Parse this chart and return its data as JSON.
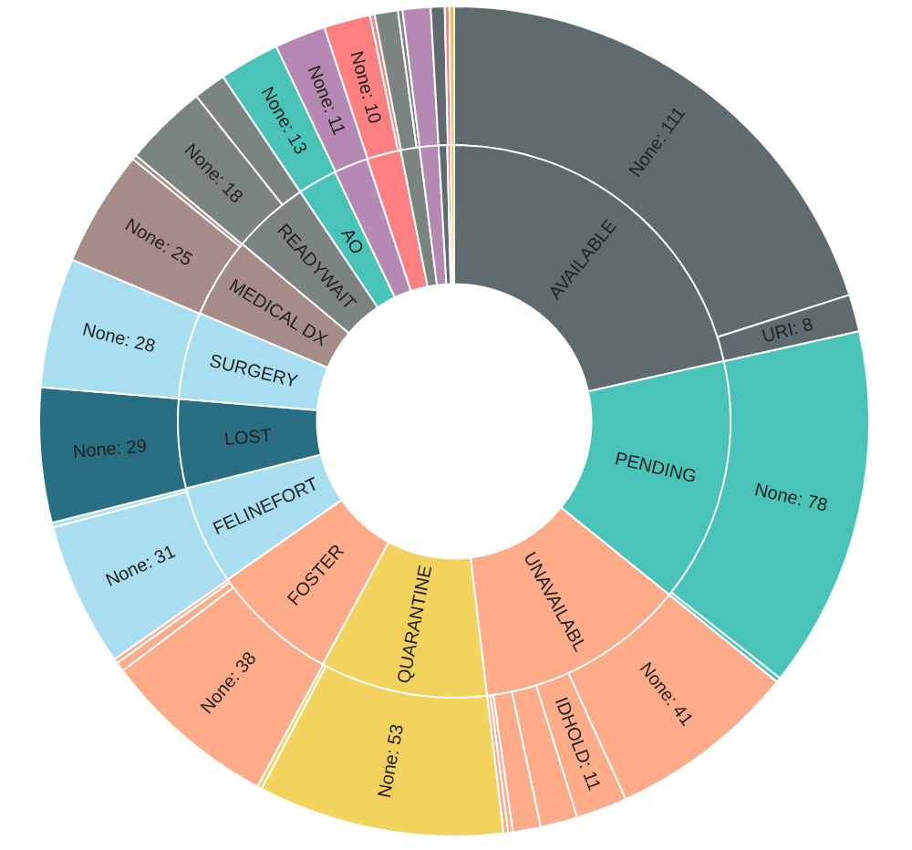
{
  "chart_data": [
    {
      "type": "donut",
      "categories": [
        "AVAILABLE",
        "PENDING",
        "UNAVAILABL",
        "QUARANTINE",
        "FOSTER",
        "FELINEFORT",
        "LOST",
        "SURGERY",
        "MEDICAL DX",
        "READYWAIT",
        "AO",
        null,
        null,
        null,
        null,
        null,
        null,
        null
      ],
      "values": [
        21.5,
        14.3,
        12.3,
        9.8,
        7.4,
        5.8,
        5.2,
        5.1,
        4.7,
        4.5,
        2.3,
        2.0,
        2.0,
        1.1,
        1.1,
        0.5,
        0.2,
        0.2
      ],
      "colors": [
        "#5f6b6d",
        "#4ac4b9",
        "#fdab89",
        "#f3d25e",
        "#fdab89",
        "#a8def0",
        "#286f83",
        "#a8def0",
        "#a58c88",
        "#7c8482",
        "#4ac4b9",
        "#b589b3",
        "#fd8080",
        "#7c8482",
        "#b589b3",
        "#5f6b6d",
        "#fd8080",
        "#f5b75a"
      ]
    },
    {
      "type": "donut",
      "categories": [
        "None: 111",
        "URI: 8",
        "None: 78",
        null,
        "None: 41",
        "IDHOLD: 11",
        null,
        null,
        null,
        null,
        "None: 53",
        null,
        "None: 38",
        null,
        null,
        "None: 31",
        null,
        "None: 29",
        "None: 28",
        "None: 25",
        null,
        "None: 18",
        null,
        "None: 13",
        "None: 11",
        "None: 10",
        null,
        null,
        null,
        null,
        null,
        null,
        null
      ],
      "values": [
        111,
        8,
        78,
        1,
        41,
        11,
        8,
        6,
        1,
        1,
        53,
        1,
        38,
        2,
        1,
        31,
        1,
        29,
        28,
        25,
        1,
        18,
        7,
        13,
        11,
        10,
        1,
        5,
        1,
        6,
        3,
        1,
        1
      ],
      "colors": [
        "#5f6b6d",
        "#5f6b6d",
        "#4ac4b9",
        "#4ac4b9",
        "#fdab89",
        "#fdab89",
        "#fdab89",
        "#fdab89",
        "#fdab89",
        "#fdab89",
        "#f3d25e",
        "#f3d25e",
        "#fdab89",
        "#fdab89",
        "#fdab89",
        "#a8def0",
        "#a8def0",
        "#286f83",
        "#a8def0",
        "#a58c88",
        "#a58c88",
        "#7c8482",
        "#7c8482",
        "#4ac4b9",
        "#b589b3",
        "#fd8080",
        "#fd8080",
        "#7c8482",
        "#7c8482",
        "#b589b3",
        "#5f6b6d",
        "#fd8080",
        "#f5b75a"
      ]
    }
  ]
}
